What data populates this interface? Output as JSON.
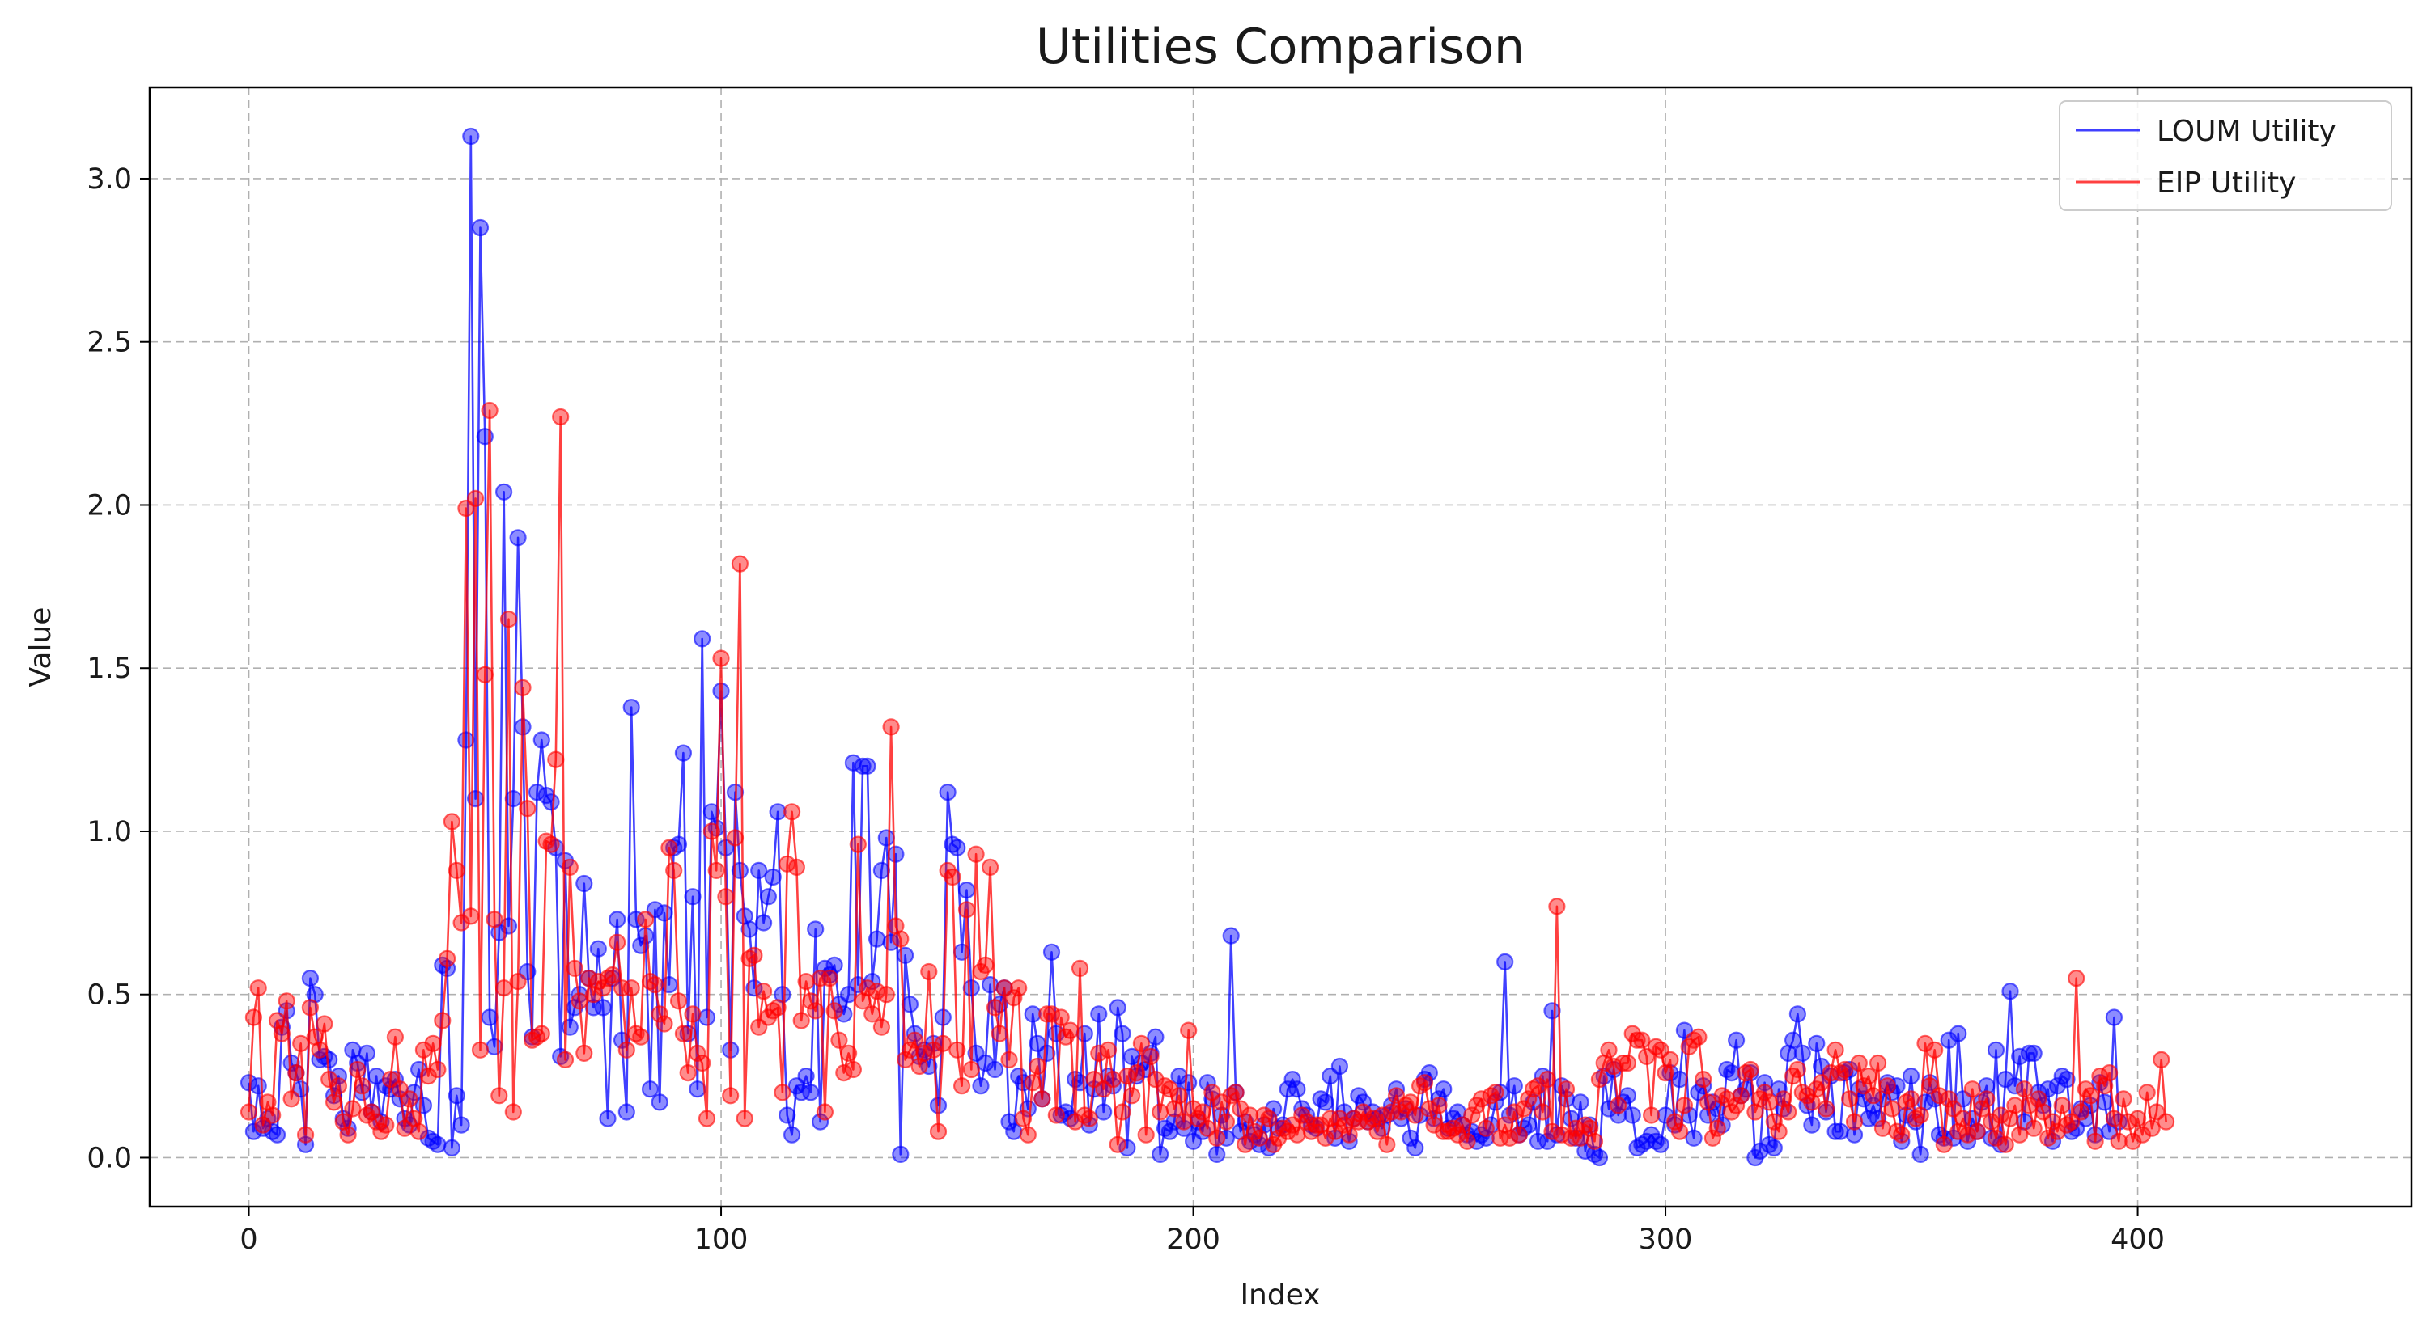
{
  "chart_data": {
    "type": "line",
    "title": "Utilities Comparison",
    "xlabel": "Index",
    "ylabel": "Value",
    "xlim": [
      -21,
      458
    ],
    "ylim": [
      -0.15,
      3.28
    ],
    "x_ticks": [
      0,
      100,
      200,
      300,
      400
    ],
    "y_ticks": [
      0.0,
      0.5,
      1.0,
      1.5,
      2.0,
      2.5,
      3.0
    ],
    "x_tick_labels": [
      "0",
      "100",
      "200",
      "300",
      "400"
    ],
    "y_tick_labels": [
      "0.0",
      "0.5",
      "1.0",
      "1.5",
      "2.0",
      "2.5",
      "3.0"
    ],
    "grid": true,
    "legend_position": "top-right",
    "markers": true,
    "x_start": 0,
    "x_step": 1,
    "series": [
      {
        "name": "LOUM Utility",
        "color": "#0000ff",
        "values": [
          0.23,
          0.08,
          0.22,
          0.09,
          0.12,
          0.08,
          0.07,
          0.4,
          0.45,
          0.29,
          0.26,
          0.21,
          0.04,
          0.55,
          0.5,
          0.3,
          0.31,
          0.3,
          0.19,
          0.25,
          0.12,
          0.09,
          0.33,
          0.29,
          0.2,
          0.32,
          0.14,
          0.25,
          0.11,
          0.22,
          0.21,
          0.24,
          0.18,
          0.12,
          0.1,
          0.2,
          0.27,
          0.16,
          0.06,
          0.05,
          0.04,
          0.59,
          0.58,
          0.03,
          0.19,
          0.1,
          1.28,
          3.13,
          1.1,
          2.85,
          2.21,
          0.43,
          0.34,
          0.69,
          2.04,
          0.71,
          1.1,
          1.9,
          1.32,
          0.57,
          0.37,
          1.12,
          1.28,
          1.11,
          1.09,
          0.95,
          0.31,
          0.91,
          0.4,
          0.46,
          0.5,
          0.84,
          0.55,
          0.46,
          0.64,
          0.46,
          0.12,
          0.55,
          0.73,
          0.36,
          0.14,
          1.38,
          0.73,
          0.65,
          0.68,
          0.21,
          0.76,
          0.17,
          0.75,
          0.53,
          0.95,
          0.96,
          1.24,
          0.38,
          0.8,
          0.21,
          1.59,
          0.43,
          1.06,
          1.01,
          1.43,
          0.95,
          0.33,
          1.12,
          0.88,
          0.74,
          0.7,
          0.52,
          0.88,
          0.72,
          0.8,
          0.86,
          1.06,
          0.5,
          0.13,
          0.07,
          0.22,
          0.2,
          0.25,
          0.2,
          0.7,
          0.11,
          0.58,
          0.56,
          0.59,
          0.47,
          0.44,
          0.5,
          1.21,
          0.53,
          1.2,
          1.2,
          0.54,
          0.67,
          0.88,
          0.98,
          0.66,
          0.93,
          0.01,
          0.62,
          0.47,
          0.38,
          0.31,
          0.33,
          0.28,
          0.35,
          0.16,
          0.43,
          1.12,
          0.96,
          0.95,
          0.63,
          0.82,
          0.52,
          0.32,
          0.22,
          0.29,
          0.53,
          0.27,
          0.47,
          0.52,
          0.11,
          0.08,
          0.25,
          0.23,
          0.15,
          0.44,
          0.35,
          0.18,
          0.32,
          0.63,
          0.38,
          0.13,
          0.14,
          0.12,
          0.24,
          0.23,
          0.38,
          0.1,
          0.21,
          0.44,
          0.14,
          0.25,
          0.22,
          0.46,
          0.38,
          0.03,
          0.31,
          0.25,
          0.29,
          0.27,
          0.32,
          0.37,
          0.01,
          0.09,
          0.08,
          0.11,
          0.25,
          0.09,
          0.23,
          0.05,
          0.11,
          0.08,
          0.23,
          0.18,
          0.01,
          0.13,
          0.06,
          0.68,
          0.2,
          0.08,
          0.11,
          0.05,
          0.07,
          0.04,
          0.1,
          0.03,
          0.15,
          0.09,
          0.1,
          0.21,
          0.24,
          0.21,
          0.15,
          0.13,
          0.1,
          0.09,
          0.18,
          0.17,
          0.25,
          0.06,
          0.28,
          0.14,
          0.05,
          0.12,
          0.19,
          0.17,
          0.11,
          0.14,
          0.12,
          0.09,
          0.13,
          0.16,
          0.21,
          0.12,
          0.15,
          0.06,
          0.03,
          0.13,
          0.24,
          0.26,
          0.12,
          0.18,
          0.21,
          0.09,
          0.12,
          0.14,
          0.1,
          0.07,
          0.08,
          0.05,
          0.07,
          0.06,
          0.1,
          0.17,
          0.2,
          0.6,
          0.13,
          0.22,
          0.07,
          0.09,
          0.1,
          0.17,
          0.05,
          0.25,
          0.05,
          0.45,
          0.07,
          0.22,
          0.18,
          0.12,
          0.06,
          0.17,
          0.02,
          0.1,
          0.01,
          0.0,
          0.25,
          0.15,
          0.27,
          0.13,
          0.17,
          0.19,
          0.13,
          0.03,
          0.04,
          0.05,
          0.07,
          0.05,
          0.04,
          0.13,
          0.26,
          0.1,
          0.24,
          0.39,
          0.13,
          0.06,
          0.2,
          0.22,
          0.13,
          0.17,
          0.15,
          0.1,
          0.27,
          0.26,
          0.36,
          0.19,
          0.21,
          0.26,
          0.0,
          0.02,
          0.23,
          0.04,
          0.03,
          0.21,
          0.15,
          0.32,
          0.36,
          0.44,
          0.32,
          0.16,
          0.1,
          0.35,
          0.28,
          0.14,
          0.25,
          0.08,
          0.08,
          0.26,
          0.27,
          0.07,
          0.21,
          0.18,
          0.12,
          0.16,
          0.12,
          0.18,
          0.23,
          0.2,
          0.22,
          0.05,
          0.13,
          0.25,
          0.11,
          0.01,
          0.17,
          0.23,
          0.18,
          0.07,
          0.06,
          0.36,
          0.06,
          0.38,
          0.18,
          0.05,
          0.12,
          0.08,
          0.17,
          0.22,
          0.06,
          0.33,
          0.04,
          0.24,
          0.51,
          0.22,
          0.31,
          0.11,
          0.32,
          0.32,
          0.2,
          0.16,
          0.21,
          0.05,
          0.22,
          0.25,
          0.24,
          0.08,
          0.09,
          0.15,
          0.12,
          0.16,
          0.07,
          0.23,
          0.17,
          0.08,
          0.43,
          0.11
        ]
      },
      {
        "name": "EIP Utility",
        "color": "#ff0000",
        "values": [
          0.14,
          0.43,
          0.52,
          0.1,
          0.17,
          0.13,
          0.42,
          0.38,
          0.48,
          0.18,
          0.26,
          0.35,
          0.07,
          0.46,
          0.37,
          0.33,
          0.41,
          0.24,
          0.17,
          0.22,
          0.11,
          0.07,
          0.15,
          0.27,
          0.22,
          0.13,
          0.14,
          0.11,
          0.08,
          0.1,
          0.24,
          0.37,
          0.21,
          0.09,
          0.18,
          0.12,
          0.08,
          0.33,
          0.25,
          0.35,
          0.27,
          0.42,
          0.61,
          1.03,
          0.88,
          0.72,
          1.99,
          0.74,
          2.02,
          0.33,
          1.48,
          2.29,
          0.73,
          0.19,
          0.52,
          1.65,
          0.14,
          0.54,
          1.44,
          1.07,
          0.36,
          0.37,
          0.38,
          0.97,
          0.96,
          1.22,
          2.27,
          0.3,
          0.89,
          0.58,
          0.48,
          0.32,
          0.55,
          0.5,
          0.54,
          0.52,
          0.55,
          0.56,
          0.66,
          0.52,
          0.33,
          0.52,
          0.38,
          0.37,
          0.73,
          0.54,
          0.53,
          0.44,
          0.41,
          0.95,
          0.88,
          0.48,
          0.38,
          0.26,
          0.44,
          0.32,
          0.29,
          0.12,
          1.0,
          0.88,
          1.53,
          0.8,
          0.19,
          0.98,
          1.82,
          0.12,
          0.61,
          0.62,
          0.4,
          0.51,
          0.43,
          0.45,
          0.46,
          0.2,
          0.9,
          1.06,
          0.89,
          0.42,
          0.54,
          0.48,
          0.45,
          0.55,
          0.14,
          0.55,
          0.45,
          0.36,
          0.26,
          0.32,
          0.27,
          0.96,
          0.48,
          0.52,
          0.44,
          0.51,
          0.4,
          0.5,
          1.32,
          0.71,
          0.67,
          0.3,
          0.33,
          0.36,
          0.28,
          0.32,
          0.57,
          0.33,
          0.08,
          0.35,
          0.88,
          0.86,
          0.33,
          0.22,
          0.76,
          0.27,
          0.93,
          0.57,
          0.59,
          0.89,
          0.46,
          0.38,
          0.52,
          0.3,
          0.49,
          0.52,
          0.12,
          0.07,
          0.23,
          0.28,
          0.18,
          0.44,
          0.44,
          0.13,
          0.43,
          0.37,
          0.39,
          0.11,
          0.58,
          0.13,
          0.12,
          0.24,
          0.32,
          0.21,
          0.33,
          0.24,
          0.04,
          0.14,
          0.25,
          0.19,
          0.26,
          0.35,
          0.07,
          0.31,
          0.24,
          0.14,
          0.22,
          0.21,
          0.15,
          0.19,
          0.11,
          0.39,
          0.15,
          0.12,
          0.14,
          0.09,
          0.2,
          0.06,
          0.17,
          0.11,
          0.19,
          0.2,
          0.15,
          0.04,
          0.13,
          0.08,
          0.06,
          0.13,
          0.12,
          0.04,
          0.06,
          0.09,
          0.08,
          0.1,
          0.07,
          0.13,
          0.11,
          0.08,
          0.1,
          0.1,
          0.06,
          0.12,
          0.08,
          0.12,
          0.1,
          0.07,
          0.12,
          0.11,
          0.14,
          0.11,
          0.12,
          0.08,
          0.13,
          0.04,
          0.14,
          0.19,
          0.14,
          0.16,
          0.17,
          0.13,
          0.22,
          0.23,
          0.15,
          0.1,
          0.16,
          0.08,
          0.08,
          0.09,
          0.07,
          0.1,
          0.05,
          0.13,
          0.16,
          0.18,
          0.09,
          0.19,
          0.2,
          0.06,
          0.1,
          0.06,
          0.14,
          0.07,
          0.15,
          0.18,
          0.21,
          0.22,
          0.14,
          0.24,
          0.08,
          0.77,
          0.07,
          0.21,
          0.06,
          0.09,
          0.06,
          0.1,
          0.09,
          0.05,
          0.24,
          0.29,
          0.33,
          0.28,
          0.16,
          0.29,
          0.29,
          0.38,
          0.36,
          0.36,
          0.31,
          0.13,
          0.34,
          0.33,
          0.26,
          0.3,
          0.11,
          0.08,
          0.16,
          0.34,
          0.36,
          0.37,
          0.24,
          0.17,
          0.06,
          0.09,
          0.19,
          0.18,
          0.14,
          0.16,
          0.19,
          0.26,
          0.27,
          0.14,
          0.18,
          0.2,
          0.17,
          0.11,
          0.08,
          0.18,
          0.14,
          0.25,
          0.27,
          0.2,
          0.19,
          0.17,
          0.21,
          0.23,
          0.15,
          0.26,
          0.33,
          0.26,
          0.27,
          0.18,
          0.11,
          0.29,
          0.22,
          0.25,
          0.19,
          0.29,
          0.09,
          0.22,
          0.15,
          0.08,
          0.07,
          0.17,
          0.18,
          0.12,
          0.13,
          0.35,
          0.22,
          0.33,
          0.19,
          0.04,
          0.18,
          0.15,
          0.08,
          0.12,
          0.07,
          0.21,
          0.08,
          0.15,
          0.18,
          0.11,
          0.06,
          0.13,
          0.04,
          0.12,
          0.16,
          0.07,
          0.21,
          0.16,
          0.09,
          0.18,
          0.14,
          0.06,
          0.11,
          0.08,
          0.16,
          0.1,
          0.11,
          0.55,
          0.14,
          0.21,
          0.19,
          0.05,
          0.25,
          0.22,
          0.26,
          0.12,
          0.05,
          0.18,
          0.11,
          0.05,
          0.12,
          0.07,
          0.2,
          0.09,
          0.14,
          0.3,
          0.11
        ]
      }
    ]
  }
}
